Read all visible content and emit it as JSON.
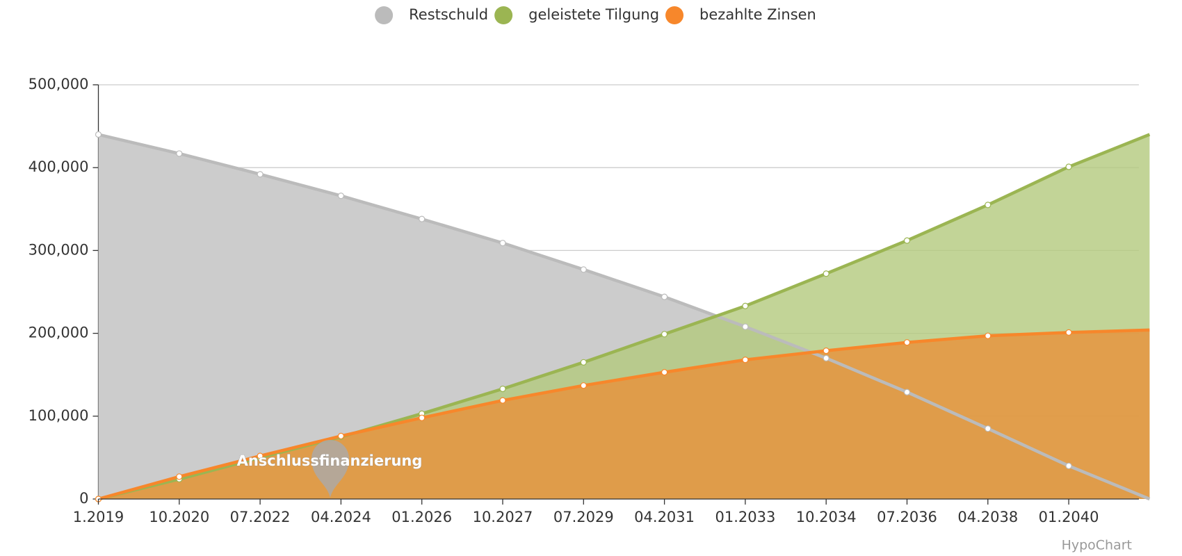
{
  "chart_data": {
    "type": "area",
    "categories": [
      "1.2019",
      "10.2020",
      "07.2022",
      "04.2024",
      "01.2026",
      "10.2027",
      "07.2029",
      "04.2031",
      "01.2033",
      "10.2034",
      "07.2036",
      "04.2038",
      "01.2040",
      null
    ],
    "series": [
      {
        "name": "Restschuld",
        "color": "#bbbbbb",
        "fill": "#cccccc",
        "values": [
          440000,
          417000,
          392000,
          366000,
          338000,
          309000,
          277000,
          244000,
          208000,
          170000,
          129000,
          85000,
          40000,
          0
        ]
      },
      {
        "name": "geleistete Tilgung",
        "color": "#9bb552",
        "fill": "#b3c97d",
        "values": [
          0,
          24000,
          50000,
          75000,
          103000,
          133000,
          165000,
          199000,
          233000,
          272000,
          312000,
          355000,
          401000,
          440000
        ]
      },
      {
        "name": "bezahlte Zinsen",
        "color": "#f7872b",
        "fill": "#e8903a",
        "values": [
          0,
          27000,
          52000,
          76000,
          98000,
          119000,
          137000,
          153000,
          168000,
          179000,
          189000,
          197000,
          201000,
          204000
        ]
      }
    ],
    "ylim": [
      0,
      500000
    ],
    "yticks": [
      0,
      {
        "value": 100000,
        "label": "100,000"
      },
      {
        "value": 200000,
        "label": "200,000"
      },
      {
        "value": 300000,
        "label": "300,000"
      },
      {
        "value": 400000,
        "label": "400,000"
      },
      {
        "value": 500000,
        "label": "500,000"
      }
    ],
    "grid": true,
    "legend": "top",
    "annotation": "Anschlussfinanzierung",
    "credit": "HypoChart"
  }
}
